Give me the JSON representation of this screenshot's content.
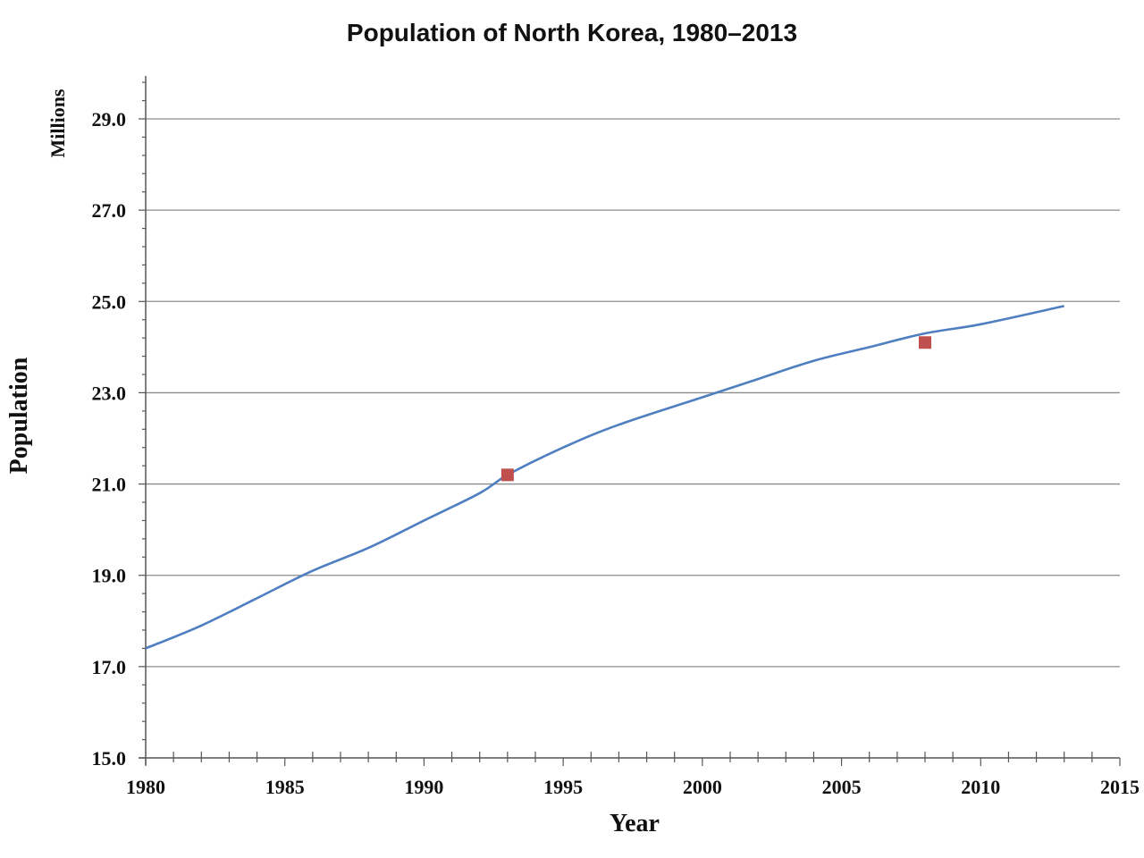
{
  "chart_data": {
    "type": "line",
    "title": "Population of North Korea, 1980–2013",
    "xlabel": "Year",
    "ylabel": "Population",
    "yunit": "Millions",
    "xlim": [
      1980,
      2015
    ],
    "ylim": [
      15.0,
      30.0
    ],
    "x_ticks": [
      1980,
      1985,
      1990,
      1995,
      2000,
      2005,
      2010,
      2015
    ],
    "y_ticks": [
      15.0,
      17.0,
      19.0,
      21.0,
      23.0,
      25.0,
      27.0,
      29.0
    ],
    "x_tick_labels": [
      "1980",
      "1985",
      "1990",
      "1995",
      "2000",
      "2005",
      "2010",
      "2015"
    ],
    "y_tick_labels": [
      "15.0",
      "17.0",
      "19.0",
      "21.0",
      "23.0",
      "25.0",
      "27.0",
      "29.0"
    ],
    "grid": true,
    "legend": "none",
    "series": [
      {
        "type": "line",
        "color": "#4f7fc0",
        "x": [
          1980,
          1982,
          1984,
          1986,
          1988,
          1990,
          1992,
          1993,
          1995,
          1997,
          2000,
          2002,
          2004,
          2006,
          2008,
          2010,
          2013
        ],
        "y": [
          17.4,
          17.9,
          18.5,
          19.1,
          19.6,
          20.2,
          20.8,
          21.2,
          21.8,
          22.3,
          22.9,
          23.3,
          23.7,
          24.0,
          24.3,
          24.5,
          24.9
        ]
      },
      {
        "type": "scatter",
        "color": "#c0504d",
        "x": [
          1993,
          2008
        ],
        "y": [
          21.2,
          24.1
        ]
      }
    ]
  }
}
